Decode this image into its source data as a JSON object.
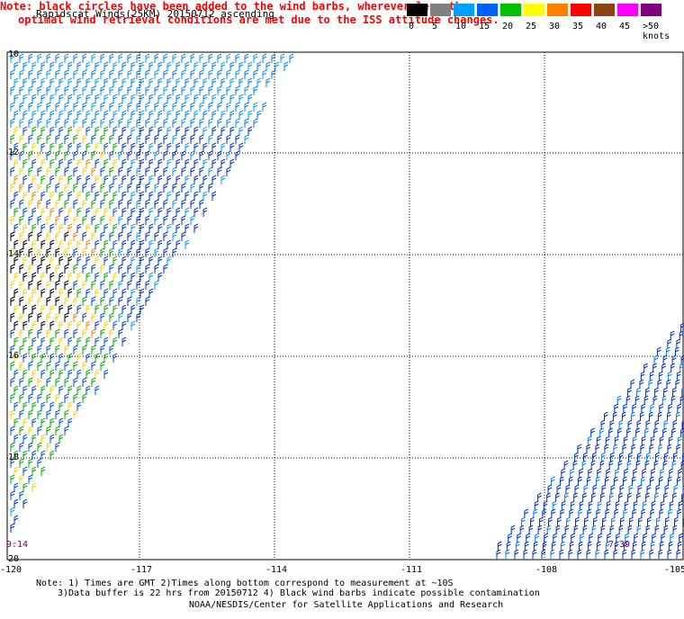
{
  "title": "Rapidscat Winds(25KM) 20150712 ascending",
  "note_line1": "Note: black circles have been added to the wind barbs, wherever less than",
  "note_line2": "optimal wind retrieval conditions are met due to the ISS attitude changes.",
  "scale": {
    "labels": [
      "0",
      "5",
      "10",
      "15",
      "20",
      "25",
      "30",
      "35",
      "40",
      "45",
      ">50 knots"
    ],
    "colors": [
      "#000000",
      "#808080",
      "#00a0ff",
      "#0060ff",
      "#00c000",
      "#ffff00",
      "#ff8000",
      "#ff0000",
      "#8b4513",
      "#ff00ff",
      "#800080"
    ]
  },
  "lat_labels": [
    "10",
    "12",
    "14",
    "16",
    "18",
    "20"
  ],
  "lon_labels": [
    "-120",
    "-117",
    "-114",
    "-111",
    "-108",
    "-105"
  ],
  "times": {
    "left": "9:14",
    "right": "7:39"
  },
  "footer": {
    "line1": "Note: 1) Times are GMT 2)Times along bottom correspond to measurement at ~10S",
    "line2": "3)Data buffer is 22 hrs from 20150712 4) Black wind barbs indicate possible contamination",
    "line3": "NOAA/NESDIS/Center for Satellite Applications and Research"
  },
  "colors": {
    "grid": "#000000",
    "note": "#ff0000",
    "time": "#800080"
  }
}
